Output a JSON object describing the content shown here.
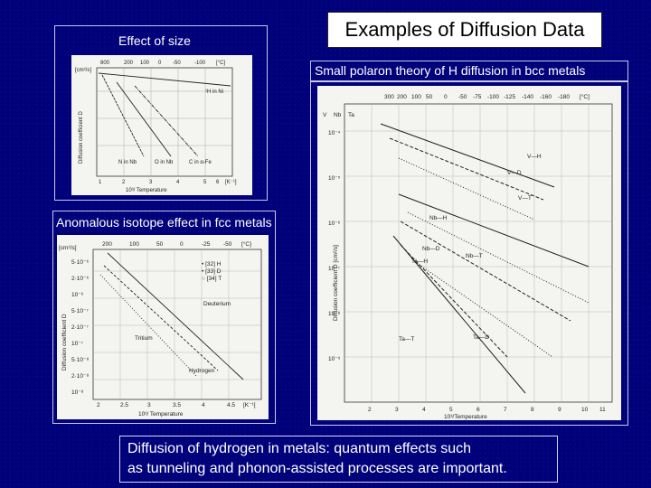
{
  "slide": {
    "title": "Examples of Diffusion Data",
    "caption_top_left": "Effect of size",
    "caption_right": "Small polaron theory of H diffusion in bcc metals",
    "caption_left_middle": "Anomalous isotope effect in fcc metals",
    "footer_line1": "Diffusion of hydrogen in metals: quantum effects such",
    "footer_line2": "as tunneling and phonon-assisted processes are important."
  },
  "figure1": {
    "top_axis": [
      "800",
      "200",
      "100",
      "0",
      "-50",
      "-100",
      "[°C]"
    ],
    "bottom_axis": [
      "1",
      "2",
      "3",
      "4",
      "5",
      "6",
      "[K⁻¹]"
    ],
    "bottom_label": "10³/ Temperature",
    "left_label": "Diffusion coefficient D",
    "left_unit": "[cm²/s]",
    "curve_labels": [
      "¹H in Ni",
      "N in Nb",
      "O in Nb",
      "C in α-Fe"
    ]
  },
  "figure2": {
    "top_axis": [
      "200",
      "100",
      "50",
      "0",
      "-25",
      "-50",
      "[°C]"
    ],
    "bottom_axis": [
      "2",
      "2.5",
      "3",
      "3.5",
      "4",
      "4.5",
      "[K⁻¹]"
    ],
    "bottom_label": "10³/ Temperature",
    "left_label": "Diffusion coefficient D",
    "left_unit": "[cm²/s]",
    "y_ticks": [
      "5·10⁻⁶",
      "2·10⁻⁶",
      "10⁻⁶",
      "5·10⁻⁷",
      "2·10⁻⁷",
      "10⁻⁷",
      "5·10⁻⁸",
      "2·10⁻⁸",
      "10⁻⁸"
    ],
    "legend": [
      "• [32] H",
      "• [33] D",
      "○ [34] T"
    ],
    "curve_labels": [
      "Deuterium",
      "Tritium",
      "Hydrogen"
    ]
  },
  "figure3": {
    "top_axis": [
      "300",
      "200",
      "100",
      "50",
      "0",
      "-50",
      "-75",
      "-100",
      "-125",
      "-140",
      "-160",
      "-180",
      "[°C]"
    ],
    "bottom_axis": [
      "2",
      "3",
      "4",
      "5",
      "6",
      "7",
      "8",
      "9",
      "10",
      "11"
    ],
    "bottom_label": "10³/Temperature",
    "left_label": "Diffusion coefficient D [cm²/s]",
    "y_ticks": [
      "10⁻⁴",
      "10⁻⁵",
      "10⁻⁶",
      "10⁻⁷",
      "10⁻⁸",
      "10⁻⁹"
    ],
    "element_labels": [
      "V",
      "Nb",
      "Ta"
    ],
    "curve_labels": [
      "V—H",
      "V—D",
      "V—T",
      "Nb—H",
      "Nb—D",
      "Nb—T",
      "Ta—H",
      "Ta—D",
      "Ta—T"
    ]
  }
}
